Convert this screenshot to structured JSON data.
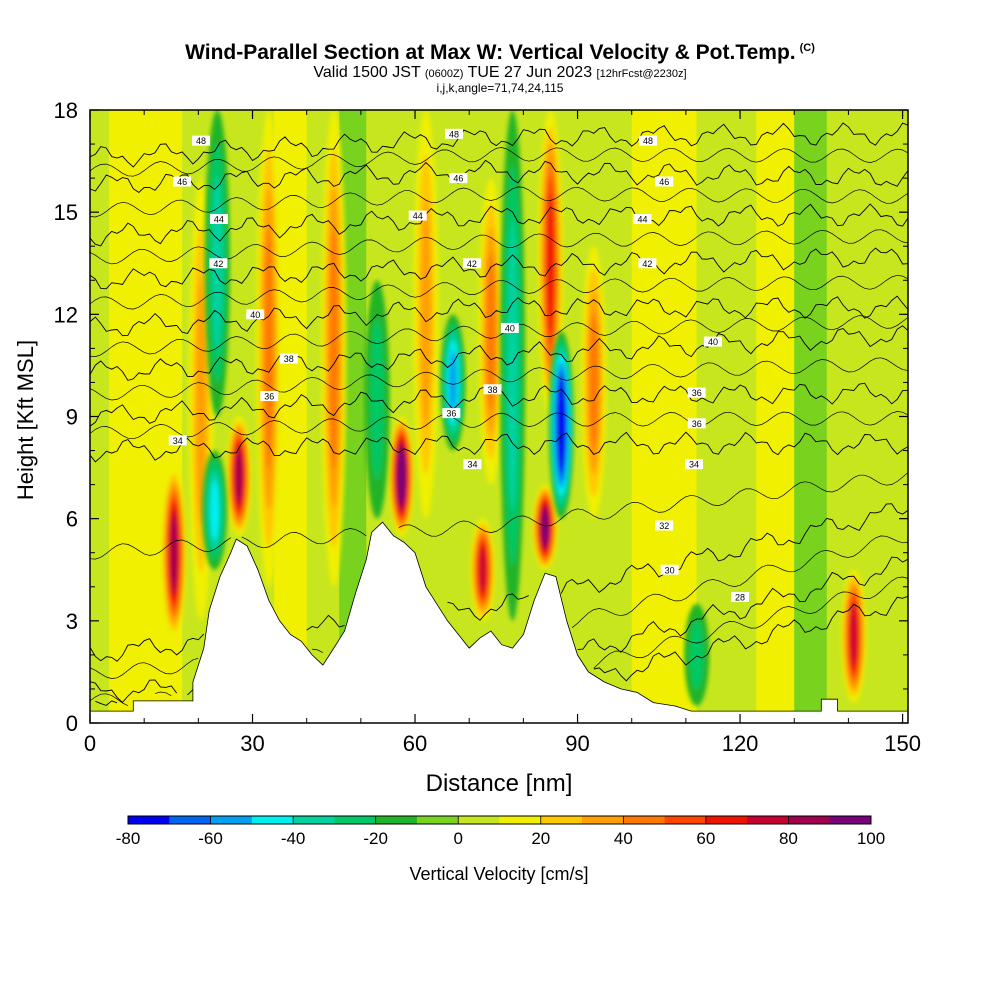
{
  "chart_data": {
    "type": "heatmap",
    "title": "Wind-Parallel Section at Max W: Vertical Velocity & Pot.Temp.",
    "title_tag": "(C)",
    "subtitle": {
      "prefix": "Valid 1500 JST",
      "utc": "(0600Z)",
      "date": "TUE 27 Jun 2023",
      "fcst": "[12hrFcst@2230z]"
    },
    "subline": "i,j,k,angle=71,74,24,115",
    "xlabel": "Distance [nm]",
    "ylabel": "Height [Kft MSL]",
    "xlim": [
      0,
      151
    ],
    "ylim": [
      0,
      18
    ],
    "x_ticks": [
      "0",
      "30",
      "60",
      "90",
      "120",
      "150"
    ],
    "y_ticks": [
      "0",
      "3",
      "6",
      "9",
      "12",
      "15",
      "18"
    ],
    "colorbar": {
      "label": "Vertical Velocity [cm/s]",
      "tick_labels": [
        "-80",
        "-60",
        "-40",
        "-20",
        "0",
        "20",
        "40",
        "60",
        "80",
        "100"
      ],
      "colors": [
        "#0000f0",
        "#0064f0",
        "#00a0f0",
        "#00f0f0",
        "#00d2a0",
        "#00c864",
        "#20b428",
        "#78d21e",
        "#c8e61e",
        "#f0f000",
        "#ffc800",
        "#ffa000",
        "#ff7800",
        "#ff4600",
        "#f01400",
        "#c80032",
        "#a00050",
        "#780078"
      ]
    },
    "terrain_kft": [
      [
        0,
        0.35
      ],
      [
        8,
        0.35
      ],
      [
        8,
        0.65
      ],
      [
        19,
        0.65
      ],
      [
        19,
        1.2
      ],
      [
        21,
        2.2
      ],
      [
        22,
        3.3
      ],
      [
        24,
        4.3
      ],
      [
        26,
        5.0
      ],
      [
        27,
        5.4
      ],
      [
        29,
        5.2
      ],
      [
        31,
        4.5
      ],
      [
        33,
        3.6
      ],
      [
        35,
        3.0
      ],
      [
        37,
        2.6
      ],
      [
        39,
        2.4
      ],
      [
        41,
        2.0
      ],
      [
        43,
        1.7
      ],
      [
        45,
        2.2
      ],
      [
        47,
        2.7
      ],
      [
        49,
        3.8
      ],
      [
        51,
        4.8
      ],
      [
        52,
        5.6
      ],
      [
        54,
        5.9
      ],
      [
        56,
        5.5
      ],
      [
        58,
        5.3
      ],
      [
        60,
        5.0
      ],
      [
        62,
        4.0
      ],
      [
        64,
        3.5
      ],
      [
        66,
        3.0
      ],
      [
        68,
        2.6
      ],
      [
        70,
        2.2
      ],
      [
        72,
        2.5
      ],
      [
        74,
        2.7
      ],
      [
        76,
        2.3
      ],
      [
        78,
        2.2
      ],
      [
        80,
        2.6
      ],
      [
        82,
        3.6
      ],
      [
        84,
        4.4
      ],
      [
        86,
        4.3
      ],
      [
        88,
        3.0
      ],
      [
        90,
        2.0
      ],
      [
        92,
        1.5
      ],
      [
        95,
        1.2
      ],
      [
        98,
        1.0
      ],
      [
        101,
        0.9
      ],
      [
        104,
        0.6
      ],
      [
        108,
        0.5
      ],
      [
        111,
        0.35
      ],
      [
        135,
        0.35
      ],
      [
        135,
        0.7
      ],
      [
        138,
        0.7
      ],
      [
        138,
        0.35
      ],
      [
        151,
        0.35
      ]
    ],
    "updrafts": [
      {
        "x": 15.5,
        "y0": 2.5,
        "y1": 7.5,
        "w": 82
      },
      {
        "x": 20.5,
        "y0": 3.0,
        "y1": 16.0,
        "w": 38
      },
      {
        "x": 27.5,
        "y0": 5.5,
        "y1": 9.0,
        "w": 80
      },
      {
        "x": 33.0,
        "y0": 4.0,
        "y1": 18.0,
        "w": 42
      },
      {
        "x": 45.0,
        "y0": 4.0,
        "y1": 18.0,
        "w": 40
      },
      {
        "x": 57.5,
        "y0": 5.5,
        "y1": 9.0,
        "w": 100
      },
      {
        "x": 62.0,
        "y0": 6.0,
        "y1": 18.0,
        "w": 38
      },
      {
        "x": 72.5,
        "y0": 3.0,
        "y1": 6.0,
        "w": 72
      },
      {
        "x": 74.0,
        "y0": 7.0,
        "y1": 16.0,
        "w": 42
      },
      {
        "x": 84.0,
        "y0": 4.5,
        "y1": 7.0,
        "w": 90
      },
      {
        "x": 85.0,
        "y0": 9.0,
        "y1": 18.0,
        "w": 65
      },
      {
        "x": 93.0,
        "y0": 6.0,
        "y1": 14.0,
        "w": 40
      },
      {
        "x": 141.0,
        "y0": 0.6,
        "y1": 4.5,
        "w": 72
      }
    ],
    "downdrafts": [
      {
        "x": 23.0,
        "y0": 4.5,
        "y1": 8.0,
        "w": -45
      },
      {
        "x": 23.5,
        "y0": 9.0,
        "y1": 18.0,
        "w": -32
      },
      {
        "x": 53.0,
        "y0": 6.0,
        "y1": 13.0,
        "w": -28
      },
      {
        "x": 67.0,
        "y0": 8.0,
        "y1": 12.0,
        "w": -50
      },
      {
        "x": 78.0,
        "y0": 3.0,
        "y1": 18.0,
        "w": -30
      },
      {
        "x": 87.0,
        "y0": 6.0,
        "y1": 11.5,
        "w": -80
      },
      {
        "x": 112.0,
        "y0": 0.5,
        "y1": 3.5,
        "w": -25
      }
    ],
    "theta_levels": [
      {
        "value": 28,
        "label": "28",
        "left": 0.4,
        "mid": 0.6,
        "right": 3.6,
        "lx": 120
      },
      {
        "value": 30,
        "label": "30",
        "left": 0.9,
        "mid": 1.4,
        "right": 4.7,
        "lx": 107
      },
      {
        "value": 32,
        "label": "32",
        "left": 2.0,
        "mid": 3.4,
        "right": 6.3,
        "lx": 105
      },
      {
        "value": 34,
        "label": "34",
        "left": 8.0,
        "mid": 8.2,
        "right": 8.2,
        "lx": 16
      },
      {
        "value": 36,
        "label": "36",
        "left": 9.0,
        "mid": 9.6,
        "right": 9.7,
        "lx": 33
      },
      {
        "value": 38,
        "label": "38",
        "left": 10.3,
        "mid": 10.8,
        "right": 11.4,
        "lx": 37
      },
      {
        "value": 40,
        "label": "40",
        "left": 11.6,
        "mid": 12.2,
        "right": 12.2,
        "lx": 30
      },
      {
        "value": 42,
        "label": "42",
        "left": 13.0,
        "mid": 13.4,
        "right": 13.7,
        "lx": 24
      },
      {
        "value": 44,
        "label": "44",
        "left": 14.3,
        "mid": 14.9,
        "right": 14.9,
        "lx": 24
      },
      {
        "value": 46,
        "label": "46",
        "left": 15.8,
        "mid": 16.2,
        "right": 16.0,
        "lx": 17
      },
      {
        "value": 48,
        "label": "48",
        "left": 16.6,
        "mid": 17.2,
        "right": 17.3,
        "lx": 20
      }
    ],
    "theta_labels": [
      {
        "text": "48",
        "x": 20.5,
        "y": 17.1
      },
      {
        "text": "46",
        "x": 17.0,
        "y": 15.9
      },
      {
        "text": "44",
        "x": 23.8,
        "y": 14.8
      },
      {
        "text": "42",
        "x": 23.7,
        "y": 13.5
      },
      {
        "text": "40",
        "x": 30.5,
        "y": 12.0
      },
      {
        "text": "38",
        "x": 36.7,
        "y": 10.7
      },
      {
        "text": "36",
        "x": 33.1,
        "y": 9.6
      },
      {
        "text": "34",
        "x": 16.2,
        "y": 8.3
      },
      {
        "text": "48",
        "x": 67.2,
        "y": 17.3
      },
      {
        "text": "46",
        "x": 68.0,
        "y": 16.0
      },
      {
        "text": "44",
        "x": 60.5,
        "y": 14.9
      },
      {
        "text": "42",
        "x": 70.5,
        "y": 13.5
      },
      {
        "text": "40",
        "x": 77.5,
        "y": 11.6
      },
      {
        "text": "38",
        "x": 74.3,
        "y": 9.8
      },
      {
        "text": "36",
        "x": 66.7,
        "y": 9.1
      },
      {
        "text": "34",
        "x": 70.6,
        "y": 7.6
      },
      {
        "text": "48",
        "x": 103.0,
        "y": 17.1
      },
      {
        "text": "46",
        "x": 106.0,
        "y": 15.9
      },
      {
        "text": "44",
        "x": 102.0,
        "y": 14.8
      },
      {
        "text": "42",
        "x": 102.9,
        "y": 13.5
      },
      {
        "text": "40",
        "x": 115.0,
        "y": 11.2
      },
      {
        "text": "36",
        "x": 112.0,
        "y": 9.7
      },
      {
        "text": "36",
        "x": 112.0,
        "y": 8.8
      },
      {
        "text": "34",
        "x": 111.5,
        "y": 7.6
      },
      {
        "text": "32",
        "x": 106.0,
        "y": 5.8
      },
      {
        "text": "30",
        "x": 107.0,
        "y": 4.5
      },
      {
        "text": "28",
        "x": 120.0,
        "y": 3.7
      }
    ]
  }
}
